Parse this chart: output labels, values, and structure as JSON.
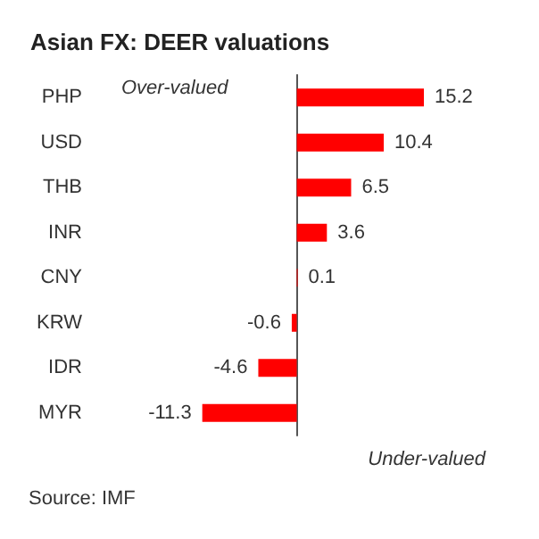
{
  "chart_data": {
    "type": "bar",
    "orientation": "horizontal",
    "title": "Asian FX: DEER valuations",
    "categories": [
      "PHP",
      "USD",
      "THB",
      "INR",
      "CNY",
      "KRW",
      "IDR",
      "MYR"
    ],
    "values": [
      15.2,
      10.4,
      6.5,
      3.6,
      0.1,
      -0.6,
      -4.6,
      -11.3
    ],
    "color": "#ff0000",
    "data_labels": true,
    "grid": false,
    "annotations": [
      "Over-valued",
      "Under-valued",
      "Source: IMF"
    ]
  }
}
